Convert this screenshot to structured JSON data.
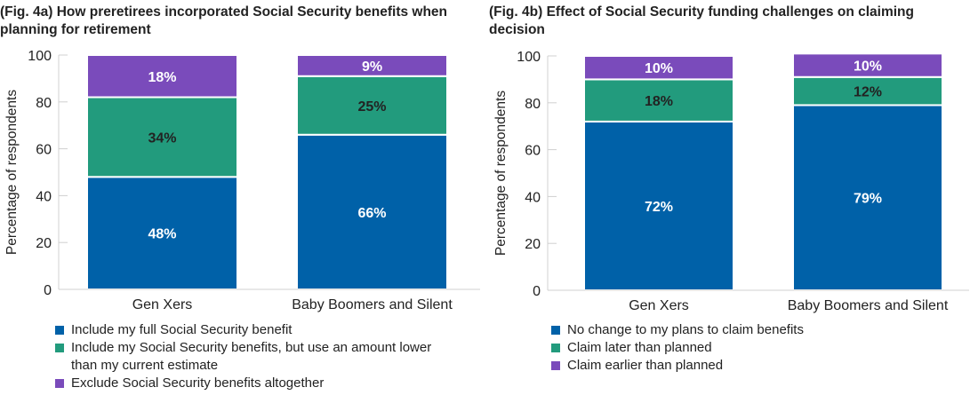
{
  "chart_data": [
    {
      "type": "bar",
      "stacked": true,
      "title": "(Fig. 4a) How preretirees incorporated Social Security benefits when planning for retirement",
      "ylabel": "Percentage of respondents",
      "ylim": [
        0,
        100
      ],
      "yticks": [
        "0",
        "20",
        "40",
        "60",
        "80",
        "100"
      ],
      "categories": [
        "Gen Xers",
        "Baby Boomers and Silent"
      ],
      "series": [
        {
          "name": "Include my full Social Security benefit",
          "color": "#0061a8",
          "values": [
            48,
            66
          ],
          "labels": [
            "48%",
            "66%"
          ],
          "label_color": "#ffffff"
        },
        {
          "name": "Include my Social Security benefits, but use an amount lower than my current estimate",
          "color": "#229b7d",
          "values": [
            34,
            25
          ],
          "labels": [
            "34%",
            "25%"
          ],
          "label_color": "#222222"
        },
        {
          "name": "Exclude Social Security benefits altogether",
          "color": "#7a4bbb",
          "values": [
            18,
            9
          ],
          "labels": [
            "18%",
            "9%"
          ],
          "label_color": "#ffffff"
        }
      ],
      "legend": "bottom"
    },
    {
      "type": "bar",
      "stacked": true,
      "title": "(Fig. 4b) Effect of Social Security funding challenges on claiming decision",
      "ylabel": "Percentage of respondents",
      "ylim": [
        0,
        100
      ],
      "yticks": [
        "0",
        "20",
        "40",
        "60",
        "80",
        "100"
      ],
      "categories": [
        "Gen Xers",
        "Baby Boomers and Silent"
      ],
      "series": [
        {
          "name": "No change to my plans to claim benefits",
          "color": "#0061a8",
          "values": [
            72,
            79
          ],
          "labels": [
            "72%",
            "79%"
          ],
          "label_color": "#ffffff"
        },
        {
          "name": "Claim later than planned",
          "color": "#229b7d",
          "values": [
            18,
            12
          ],
          "labels": [
            "18%",
            "12%"
          ],
          "label_color": "#222222"
        },
        {
          "name": "Claim earlier than planned",
          "color": "#7a4bbb",
          "values": [
            10,
            10
          ],
          "labels": [
            "10%",
            "10%"
          ],
          "label_color": "#ffffff"
        }
      ],
      "legend": "bottom"
    }
  ]
}
